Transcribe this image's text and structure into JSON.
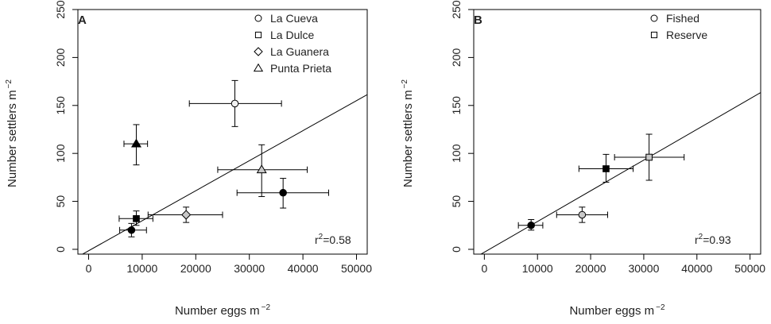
{
  "chart_data": [
    {
      "type": "scatter",
      "panel_label": "A",
      "xlabel": "Number eggs m",
      "ylabel": "Number settlers m",
      "unit_exponent": "−2",
      "xlim": [
        -2000,
        52000
      ],
      "ylim": [
        -5,
        250
      ],
      "x_ticks": [
        0,
        10000,
        20000,
        30000,
        40000,
        50000
      ],
      "y_ticks": [
        0,
        50,
        100,
        150,
        200,
        250
      ],
      "legend": {
        "placement": "top-right",
        "entries": [
          {
            "label": "La Cueva",
            "marker": "circle"
          },
          {
            "label": "La Dulce",
            "marker": "square"
          },
          {
            "label": "La Guanera",
            "marker": "diamond"
          },
          {
            "label": "Punta Prieta",
            "marker": "triangle"
          }
        ]
      },
      "points": [
        {
          "site": "La Cueva",
          "marker": "circle",
          "fill": "#000000",
          "x": 8000,
          "y": 20,
          "xerr": [
            5800,
            10800
          ],
          "yerr": [
            13,
            27
          ]
        },
        {
          "site": "La Cueva",
          "marker": "circle",
          "fill": "#f2f2f2",
          "x": 27300,
          "y": 152,
          "xerr": [
            18800,
            36000
          ],
          "yerr": [
            128,
            176
          ]
        },
        {
          "site": "La Cueva",
          "marker": "circle",
          "fill": "#000000",
          "x": 36300,
          "y": 59,
          "xerr": [
            27700,
            44800
          ],
          "yerr": [
            43,
            74
          ]
        },
        {
          "site": "La Dulce",
          "marker": "square",
          "fill": "#000000",
          "x": 8900,
          "y": 32,
          "xerr": [
            5700,
            12000
          ],
          "yerr": [
            25,
            40
          ]
        },
        {
          "site": "La Guanera",
          "marker": "diamond",
          "fill": "#c8c8c8",
          "x": 18200,
          "y": 36,
          "xerr": [
            11100,
            25000
          ],
          "yerr": [
            28,
            44
          ]
        },
        {
          "site": "Punta Prieta",
          "marker": "triangle",
          "fill": "#000000",
          "x": 8900,
          "y": 110,
          "xerr": [
            6600,
            11000
          ],
          "yerr": [
            88,
            130
          ]
        },
        {
          "site": "Punta Prieta",
          "marker": "triangle",
          "fill": "#c8c8c8",
          "x": 32300,
          "y": 83,
          "xerr": [
            24100,
            40800
          ],
          "yerr": [
            55,
            109
          ]
        }
      ],
      "regression": {
        "slope": 0.00313,
        "intercept": -1.5
      },
      "r2": {
        "base": "r",
        "sup": "2",
        "value": "=0.58"
      }
    },
    {
      "type": "scatter",
      "panel_label": "B",
      "xlabel": "Number eggs m",
      "ylabel": "Number settlers m",
      "unit_exponent": "−2",
      "xlim": [
        -2000,
        52000
      ],
      "ylim": [
        -5,
        250
      ],
      "x_ticks": [
        0,
        10000,
        20000,
        30000,
        40000,
        50000
      ],
      "y_ticks": [
        0,
        50,
        100,
        150,
        200,
        250
      ],
      "legend": {
        "placement": "top-right",
        "entries": [
          {
            "label": "Fished",
            "marker": "circle"
          },
          {
            "label": "Reserve",
            "marker": "square"
          }
        ]
      },
      "points": [
        {
          "site": "Fished",
          "marker": "circle",
          "fill": "#000000",
          "x": 8800,
          "y": 25,
          "xerr": [
            6400,
            11000
          ],
          "yerr": [
            20,
            31
          ]
        },
        {
          "site": "Fished",
          "marker": "circle",
          "fill": "#c8c8c8",
          "x": 18400,
          "y": 36,
          "xerr": [
            13600,
            23200
          ],
          "yerr": [
            28,
            44
          ]
        },
        {
          "site": "Reserve",
          "marker": "square",
          "fill": "#000000",
          "x": 22900,
          "y": 84,
          "xerr": [
            17800,
            28000
          ],
          "yerr": [
            70,
            99
          ]
        },
        {
          "site": "Reserve",
          "marker": "square",
          "fill": "#c8c8c8",
          "x": 31000,
          "y": 96,
          "xerr": [
            24500,
            37600
          ],
          "yerr": [
            72,
            120
          ]
        }
      ],
      "regression": {
        "slope": 0.0032,
        "intercept": -3.0
      },
      "r2": {
        "base": "r",
        "sup": "2",
        "value": "=0.93"
      }
    }
  ]
}
